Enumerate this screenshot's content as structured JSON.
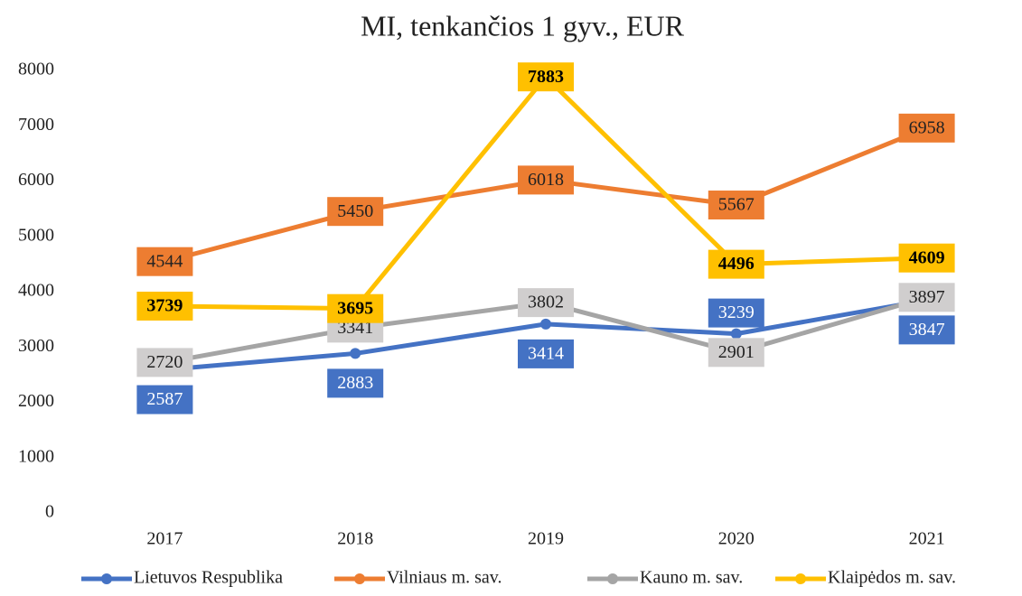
{
  "chart_data": {
    "type": "line",
    "title": "MI, tenkančios 1 gyv., EUR",
    "categories": [
      "2017",
      "2018",
      "2019",
      "2020",
      "2021"
    ],
    "series": [
      {
        "name": "Lietuvos Respublika",
        "color": "#4472c4",
        "values": [
          2587,
          2883,
          3414,
          3239,
          3847
        ]
      },
      {
        "name": "Vilniaus m. sav.",
        "color": "#ed7d31",
        "values": [
          4544,
          5450,
          6018,
          5567,
          6958
        ]
      },
      {
        "name": "Kauno m. sav.",
        "color": "#a5a5a5",
        "values": [
          2720,
          3341,
          3802,
          2901,
          3897
        ]
      },
      {
        "name": "Klaipėdos m. sav.",
        "color": "#ffc000",
        "values": [
          3739,
          3695,
          7883,
          4496,
          4609
        ]
      }
    ],
    "ylim": [
      0,
      8000
    ],
    "yticks": [
      0,
      1000,
      2000,
      3000,
      4000,
      5000,
      6000,
      7000,
      8000
    ],
    "grid": false,
    "legend": "bottom"
  }
}
